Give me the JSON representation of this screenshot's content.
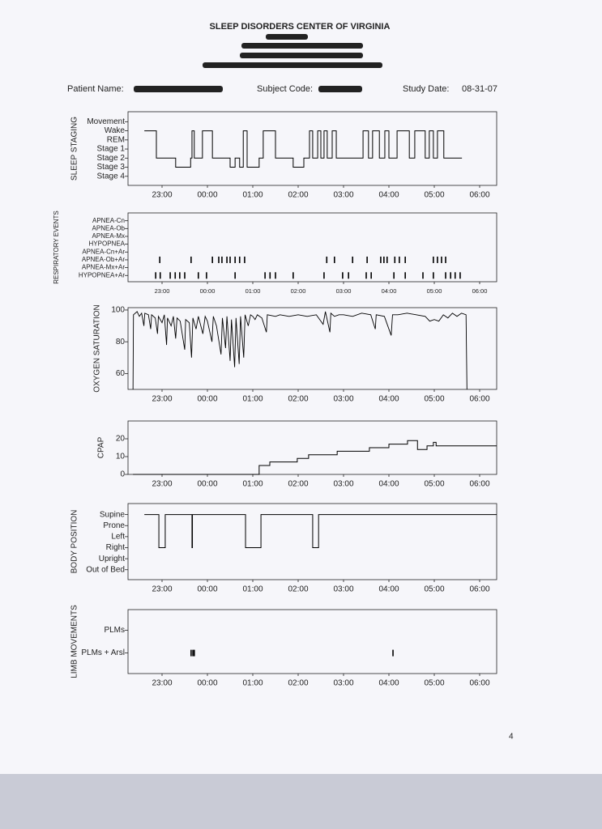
{
  "header": {
    "title": "SLEEP DISORDERS CENTER OF VIRGINIA",
    "patient_name_label": "Patient Name:",
    "subject_code_label": "Subject Code:",
    "study_date_label": "Study Date:",
    "study_date": "08-31-07"
  },
  "page_number": "4",
  "chart_data": [
    {
      "type": "step",
      "y_label": "SLEEP STAGING",
      "color": "#000000",
      "x": [
        22.61,
        22.875,
        23.3,
        23.63,
        23.66,
        23.71,
        23.89,
        24.11,
        24.5,
        24.61,
        24.71,
        24.79,
        24.875,
        25.14,
        25.23,
        25.5,
        25.89,
        26.125,
        26.25,
        26.32,
        26.43,
        26.5,
        26.57,
        26.64,
        26.75,
        26.84,
        27.43,
        27.55,
        27.64,
        27.79,
        27.91,
        28.0,
        28.18,
        28.45,
        28.57,
        28.8,
        28.89,
        28.98,
        29.07,
        29.21,
        29.61
      ],
      "values": [
        5,
        2,
        1,
        2,
        5,
        2,
        5,
        2,
        1,
        2,
        1,
        5,
        1,
        2,
        5,
        2,
        1,
        2,
        5,
        2,
        5,
        2,
        5,
        2,
        5,
        2,
        5,
        2,
        5,
        2,
        5,
        2,
        5,
        2,
        5,
        2,
        5,
        2,
        5,
        2,
        2
      ],
      "xlim": [
        22.25,
        30.375
      ],
      "xticks": [
        {
          "value": 23,
          "label": "23:00"
        },
        {
          "value": 24,
          "label": "00:00"
        },
        {
          "value": 25,
          "label": "01:00"
        },
        {
          "value": 26,
          "label": "02:00"
        },
        {
          "value": 27,
          "label": "03:00"
        },
        {
          "value": 28,
          "label": "04:00"
        },
        {
          "value": 29,
          "label": "05:00"
        },
        {
          "value": 30,
          "label": "06:00"
        }
      ],
      "ylim": [
        -1,
        7.1
      ],
      "yticks": [
        {
          "value": 6,
          "label": "Movement"
        },
        {
          "value": 5,
          "label": "Wake"
        },
        {
          "value": 4,
          "label": "REM"
        },
        {
          "value": 3,
          "label": "Stage 1"
        },
        {
          "value": 2,
          "label": "Stage 2"
        },
        {
          "value": 1,
          "label": "Stage 3"
        },
        {
          "value": 0,
          "label": "Stage 4"
        }
      ]
    },
    {
      "type": "scatter",
      "y_label": "RESPIRATORY EVENTS",
      "color": "#000000",
      "x": [
        22.95,
        23.64,
        24.11,
        24.25,
        24.32,
        24.43,
        24.5,
        24.61,
        24.71,
        24.82,
        26.63,
        26.8,
        27.2,
        27.52,
        27.82,
        27.89,
        27.96,
        28.13,
        28.23,
        28.36,
        28.98,
        29.07,
        29.16,
        29.25,
        22.86,
        22.96,
        23.18,
        23.29,
        23.39,
        23.5,
        23.8,
        23.98,
        24.61,
        25.27,
        25.38,
        25.5,
        25.89,
        26.57,
        26.98,
        27.11,
        27.5,
        27.61,
        28.11,
        28.36,
        28.75,
        28.98,
        29.25,
        29.36,
        29.46,
        29.57
      ],
      "values": [
        2,
        2,
        2,
        2,
        2,
        2,
        2,
        2,
        2,
        2,
        2,
        2,
        2,
        2,
        2,
        2,
        2,
        2,
        2,
        2,
        2,
        2,
        2,
        2,
        0,
        0,
        0,
        0,
        0,
        0,
        0,
        0,
        0,
        0,
        0,
        0,
        0,
        0,
        0,
        0,
        0,
        0,
        0,
        0,
        0,
        0,
        0,
        0,
        0,
        0
      ],
      "xlim": [
        22.25,
        30.375
      ],
      "xticks": [
        {
          "value": 23,
          "label": "23:00"
        },
        {
          "value": 24,
          "label": "00:00"
        },
        {
          "value": 25,
          "label": "01:00"
        },
        {
          "value": 26,
          "label": "02:00"
        },
        {
          "value": 27,
          "label": "03:00"
        },
        {
          "value": 28,
          "label": "04:00"
        },
        {
          "value": 29,
          "label": "05:00"
        },
        {
          "value": 30,
          "label": "06:00"
        }
      ],
      "ylim": [
        -0.8,
        8
      ],
      "yticks": [
        {
          "value": 7,
          "label": "APNEA-Cn"
        },
        {
          "value": 6,
          "label": "APNEA-Ob"
        },
        {
          "value": 5,
          "label": "APNEA-Mx"
        },
        {
          "value": 4,
          "label": "HYPOPNEA"
        },
        {
          "value": 3,
          "label": "APNEA-Cn+Ar"
        },
        {
          "value": 2,
          "label": "APNEA-Ob+Ar"
        },
        {
          "value": 1,
          "label": "APNEA-Mx+Ar"
        },
        {
          "value": 0,
          "label": "HYPOPNEA+Ar"
        }
      ]
    },
    {
      "type": "line",
      "y_label": "OXYGEN SATURATION",
      "color": "#000000",
      "x": [
        22.36,
        22.37,
        22.45,
        22.5,
        22.55,
        22.6,
        22.62,
        22.7,
        22.75,
        22.77,
        22.85,
        22.9,
        22.92,
        23.0,
        23.05,
        23.1,
        23.12,
        23.2,
        23.25,
        23.3,
        23.33,
        23.4,
        23.5,
        23.52,
        23.6,
        23.65,
        23.68,
        23.75,
        23.8,
        23.9,
        23.95,
        24.0,
        24.1,
        24.13,
        24.2,
        24.3,
        24.33,
        24.4,
        24.43,
        24.5,
        24.53,
        24.6,
        24.63,
        24.7,
        24.73,
        24.8,
        24.83,
        24.9,
        24.95,
        25.0,
        25.05,
        25.1,
        25.2,
        25.3,
        25.32,
        25.5,
        25.6,
        25.8,
        26.0,
        26.2,
        26.4,
        26.55,
        26.6,
        26.7,
        26.72,
        26.8,
        26.9,
        27.0,
        27.2,
        27.4,
        27.6,
        27.7,
        27.72,
        27.9,
        28.05,
        28.08,
        28.2,
        28.4,
        28.6,
        28.8,
        28.9,
        29.0,
        29.1,
        29.2,
        29.3,
        29.4,
        29.5,
        29.6,
        29.7,
        29.72
      ],
      "values": [
        50,
        97,
        99,
        96,
        98,
        90,
        98,
        97,
        88,
        97,
        95,
        85,
        96,
        92,
        97,
        78,
        95,
        90,
        96,
        82,
        95,
        93,
        75,
        94,
        92,
        70,
        95,
        88,
        96,
        85,
        96,
        93,
        80,
        96,
        90,
        72,
        95,
        76,
        96,
        68,
        94,
        64,
        95,
        66,
        96,
        70,
        97,
        90,
        97,
        96,
        94,
        97,
        95,
        86,
        97,
        96,
        97,
        96,
        97,
        96,
        97,
        91,
        99,
        86,
        98,
        96,
        97,
        97,
        96,
        98,
        97,
        88,
        97,
        96,
        84,
        97,
        97,
        98,
        97,
        96,
        93,
        94,
        93,
        97,
        95,
        98,
        96,
        98,
        97,
        50
      ],
      "xlim": [
        22.25,
        30.375
      ],
      "xticks": [
        {
          "value": 23,
          "label": "23:00"
        },
        {
          "value": 24,
          "label": "00:00"
        },
        {
          "value": 25,
          "label": "01:00"
        },
        {
          "value": 26,
          "label": "02:00"
        },
        {
          "value": 27,
          "label": "03:00"
        },
        {
          "value": 28,
          "label": "04:00"
        },
        {
          "value": 29,
          "label": "05:00"
        },
        {
          "value": 30,
          "label": "06:00"
        }
      ],
      "ylim": [
        50,
        101.5
      ],
      "yticks": [
        100,
        80,
        60
      ]
    },
    {
      "type": "step",
      "y_label": "CPAP",
      "color": "#000000",
      "x": [
        22.36,
        25.14,
        25.375,
        25.98,
        26.23,
        26.86,
        27.57,
        28.0,
        28.41,
        28.63,
        28.84,
        28.98,
        29.04,
        30.375
      ],
      "values": [
        0,
        5,
        7,
        9,
        11,
        13,
        15,
        17,
        19,
        14,
        16,
        18,
        16,
        16
      ],
      "xlim": [
        22.25,
        30.375
      ],
      "xticks": [
        {
          "value": 23,
          "label": "23:00"
        },
        {
          "value": 24,
          "label": "00:00"
        },
        {
          "value": 25,
          "label": "01:00"
        },
        {
          "value": 26,
          "label": "02:00"
        },
        {
          "value": 27,
          "label": "03:00"
        },
        {
          "value": 28,
          "label": "04:00"
        },
        {
          "value": 29,
          "label": "05:00"
        },
        {
          "value": 30,
          "label": "06:00"
        }
      ],
      "ylim": [
        0,
        30
      ],
      "yticks": [
        20,
        10,
        0
      ]
    },
    {
      "type": "step",
      "y_label": "BODY POSITION",
      "color": "#000000",
      "x": [
        22.61,
        22.93,
        23.07,
        23.66,
        23.67,
        24.84,
        25.18,
        26.32,
        26.45,
        30.375
      ],
      "values": [
        5,
        2,
        5,
        2,
        5,
        2,
        5,
        2,
        5,
        5
      ],
      "xlim": [
        22.25,
        30.375
      ],
      "xticks": [
        {
          "value": 23,
          "label": "23:00"
        },
        {
          "value": 24,
          "label": "00:00"
        },
        {
          "value": 25,
          "label": "01:00"
        },
        {
          "value": 26,
          "label": "02:00"
        },
        {
          "value": 27,
          "label": "03:00"
        },
        {
          "value": 28,
          "label": "04:00"
        },
        {
          "value": 29,
          "label": "05:00"
        },
        {
          "value": 30,
          "label": "06:00"
        }
      ],
      "ylim": [
        -0.9,
        6
      ],
      "yticks": [
        {
          "value": 5,
          "label": "Supine"
        },
        {
          "value": 4,
          "label": "Prone"
        },
        {
          "value": 3,
          "label": "Left"
        },
        {
          "value": 2,
          "label": "Right"
        },
        {
          "value": 1,
          "label": "Upright"
        },
        {
          "value": 0,
          "label": "Out of Bed"
        }
      ]
    },
    {
      "type": "scatter",
      "y_label": "LIMB MOVEMENTS",
      "color": "#000000",
      "x": [
        23.64,
        23.68,
        23.71,
        28.09
      ],
      "values": [
        0,
        0,
        0,
        0
      ],
      "xlim": [
        22.25,
        30.375
      ],
      "xticks": [
        {
          "value": 23,
          "label": "23:00"
        },
        {
          "value": 24,
          "label": "00:00"
        },
        {
          "value": 25,
          "label": "01:00"
        },
        {
          "value": 26,
          "label": "02:00"
        },
        {
          "value": 27,
          "label": "03:00"
        },
        {
          "value": 28,
          "label": "04:00"
        },
        {
          "value": 29,
          "label": "05:00"
        },
        {
          "value": 30,
          "label": "06:00"
        }
      ],
      "ylim": [
        -0.9,
        1.9
      ],
      "yticks": [
        {
          "value": 1,
          "label": "PLMs"
        },
        {
          "value": 0,
          "label": "PLMs + Arsl"
        }
      ]
    }
  ]
}
